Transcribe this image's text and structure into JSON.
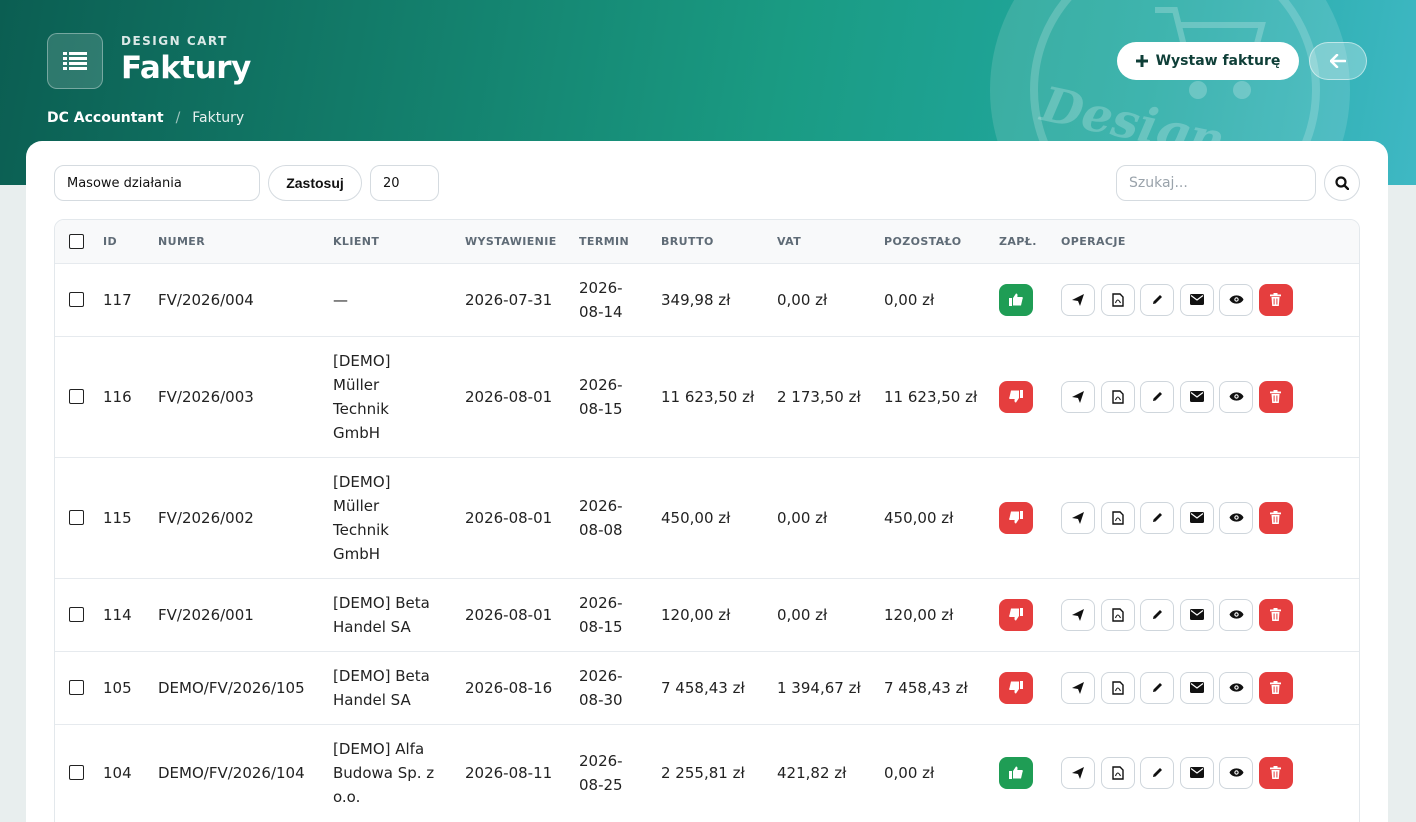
{
  "header": {
    "eyebrow": "DESIGN CART",
    "title": "Faktury",
    "breadcrumb": {
      "root": "DC Accountant",
      "current": "Faktury",
      "separator": "/"
    },
    "issue_button": "Wystaw fakturę",
    "logo_text": "Design"
  },
  "toolbar": {
    "bulk_actions": "Masowe działania",
    "apply_label": "Zastosuj",
    "per_page": "20",
    "search_placeholder": "Szukaj..."
  },
  "table": {
    "columns": {
      "id": "ID",
      "number": "NUMER",
      "client": "KLIENT",
      "issued": "WYSTAWIENIE",
      "due": "TERMIN",
      "gross": "BRUTTO",
      "vat": "VAT",
      "remaining": "POZOSTAŁO",
      "paid": "ZAPŁ.",
      "operations": "OPERACJE"
    },
    "rows": [
      {
        "id": "117",
        "number": "FV/2026/004",
        "client": "—",
        "issued": "2026-07-31",
        "due": "2026-\n08-14",
        "gross": "349,98 zł",
        "vat": "0,00 zł",
        "remaining": "0,00 zł",
        "paid": true
      },
      {
        "id": "116",
        "number": "FV/2026/003",
        "client": "[DEMO]\nMüller\nTechnik\nGmbH",
        "issued": "2026-08-01",
        "due": "2026-\n08-15",
        "gross": "11 623,50 zł",
        "vat": "2 173,50 zł",
        "remaining": "11 623,50 zł",
        "paid": false
      },
      {
        "id": "115",
        "number": "FV/2026/002",
        "client": "[DEMO]\nMüller\nTechnik\nGmbH",
        "issued": "2026-08-01",
        "due": "2026-\n08-08",
        "gross": "450,00 zł",
        "vat": "0,00 zł",
        "remaining": "450,00 zł",
        "paid": false
      },
      {
        "id": "114",
        "number": "FV/2026/001",
        "client": "[DEMO] Beta\nHandel SA",
        "issued": "2026-08-01",
        "due": "2026-\n08-15",
        "gross": "120,00 zł",
        "vat": "0,00 zł",
        "remaining": "120,00 zł",
        "paid": false
      },
      {
        "id": "105",
        "number": "DEMO/FV/2026/105",
        "client": "[DEMO] Beta\nHandel SA",
        "issued": "2026-08-16",
        "due": "2026-\n08-30",
        "gross": "7 458,43 zł",
        "vat": "1 394,67 zł",
        "remaining": "7 458,43 zł",
        "paid": false
      },
      {
        "id": "104",
        "number": "DEMO/FV/2026/104",
        "client": "[DEMO] Alfa\nBudowa Sp. z\no.o.",
        "issued": "2026-08-11",
        "due": "2026-\n08-25",
        "gross": "2 255,81 zł",
        "vat": "421,82 zł",
        "remaining": "0,00 zł",
        "paid": true
      }
    ]
  },
  "colors": {
    "paid": "#1f9d55",
    "unpaid": "#e53e3e",
    "delete": "#e53e3e",
    "header_teal": "#127a68"
  },
  "icons": {
    "app": "list-icon",
    "issue": "plus-icon",
    "back": "arrow-left-icon",
    "search": "search-icon",
    "paid": "thumbs-up-icon",
    "unpaid": "thumbs-down-icon",
    "operations": [
      "send-icon",
      "pdf-icon",
      "edit-icon",
      "email-icon",
      "view-icon",
      "delete-icon"
    ]
  }
}
